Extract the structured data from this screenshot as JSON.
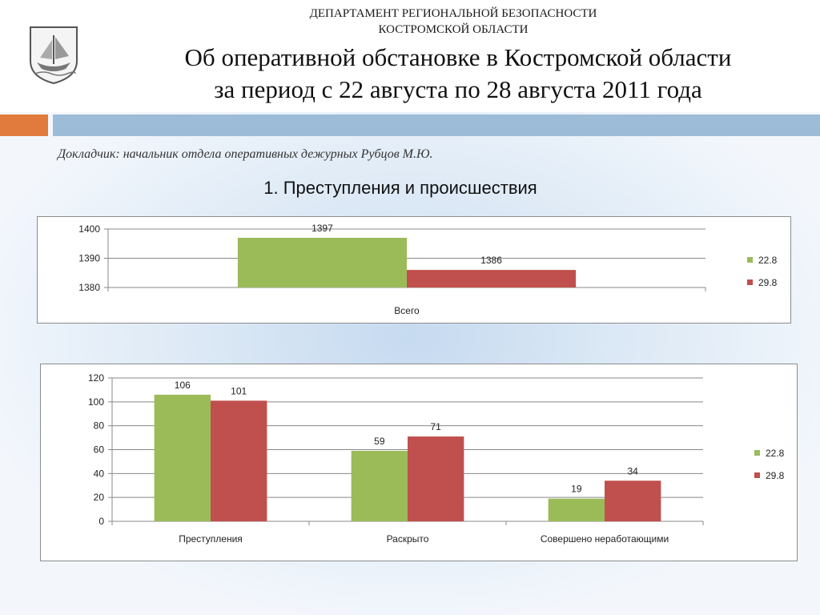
{
  "header": {
    "department_line1": "ДЕПАРТАМЕНТ РЕГИОНАЛЬНОЙ БЕЗОПАСНОСТИ",
    "department_line2": "КОСТРОМСКОЙ ОБЛАСТИ",
    "title_line1": "Об оперативной обстановке в Костромской области",
    "title_line2": "за период с 22 августа по 28 августа 2011 года"
  },
  "reporter": "Докладчик: начальник отдела оперативных дежурных Рубцов М.Ю.",
  "section_title": "1. Преступления и происшествия",
  "colors": {
    "series_1": "#9bbb59",
    "series_2": "#c0504d",
    "orange_band": "#e07b3d",
    "blue_band": "#9cbcd8"
  },
  "chart_data": [
    {
      "type": "bar",
      "categories": [
        "Всего"
      ],
      "series": [
        {
          "name": "22.8",
          "values": [
            1397
          ]
        },
        {
          "name": "29.8",
          "values": [
            1386
          ]
        }
      ],
      "ylim": [
        1380,
        1400
      ],
      "yticks": [
        1380,
        1390,
        1400
      ],
      "legend": "right",
      "grid": true
    },
    {
      "type": "bar",
      "categories": [
        "Преступления",
        "Раскрыто",
        "Совершено неработающими"
      ],
      "series": [
        {
          "name": "22.8",
          "values": [
            106,
            59,
            19
          ]
        },
        {
          "name": "29.8",
          "values": [
            101,
            71,
            34
          ]
        }
      ],
      "ylim": [
        0,
        120
      ],
      "yticks": [
        0,
        20,
        40,
        60,
        80,
        100,
        120
      ],
      "legend": "right",
      "grid": true
    }
  ]
}
